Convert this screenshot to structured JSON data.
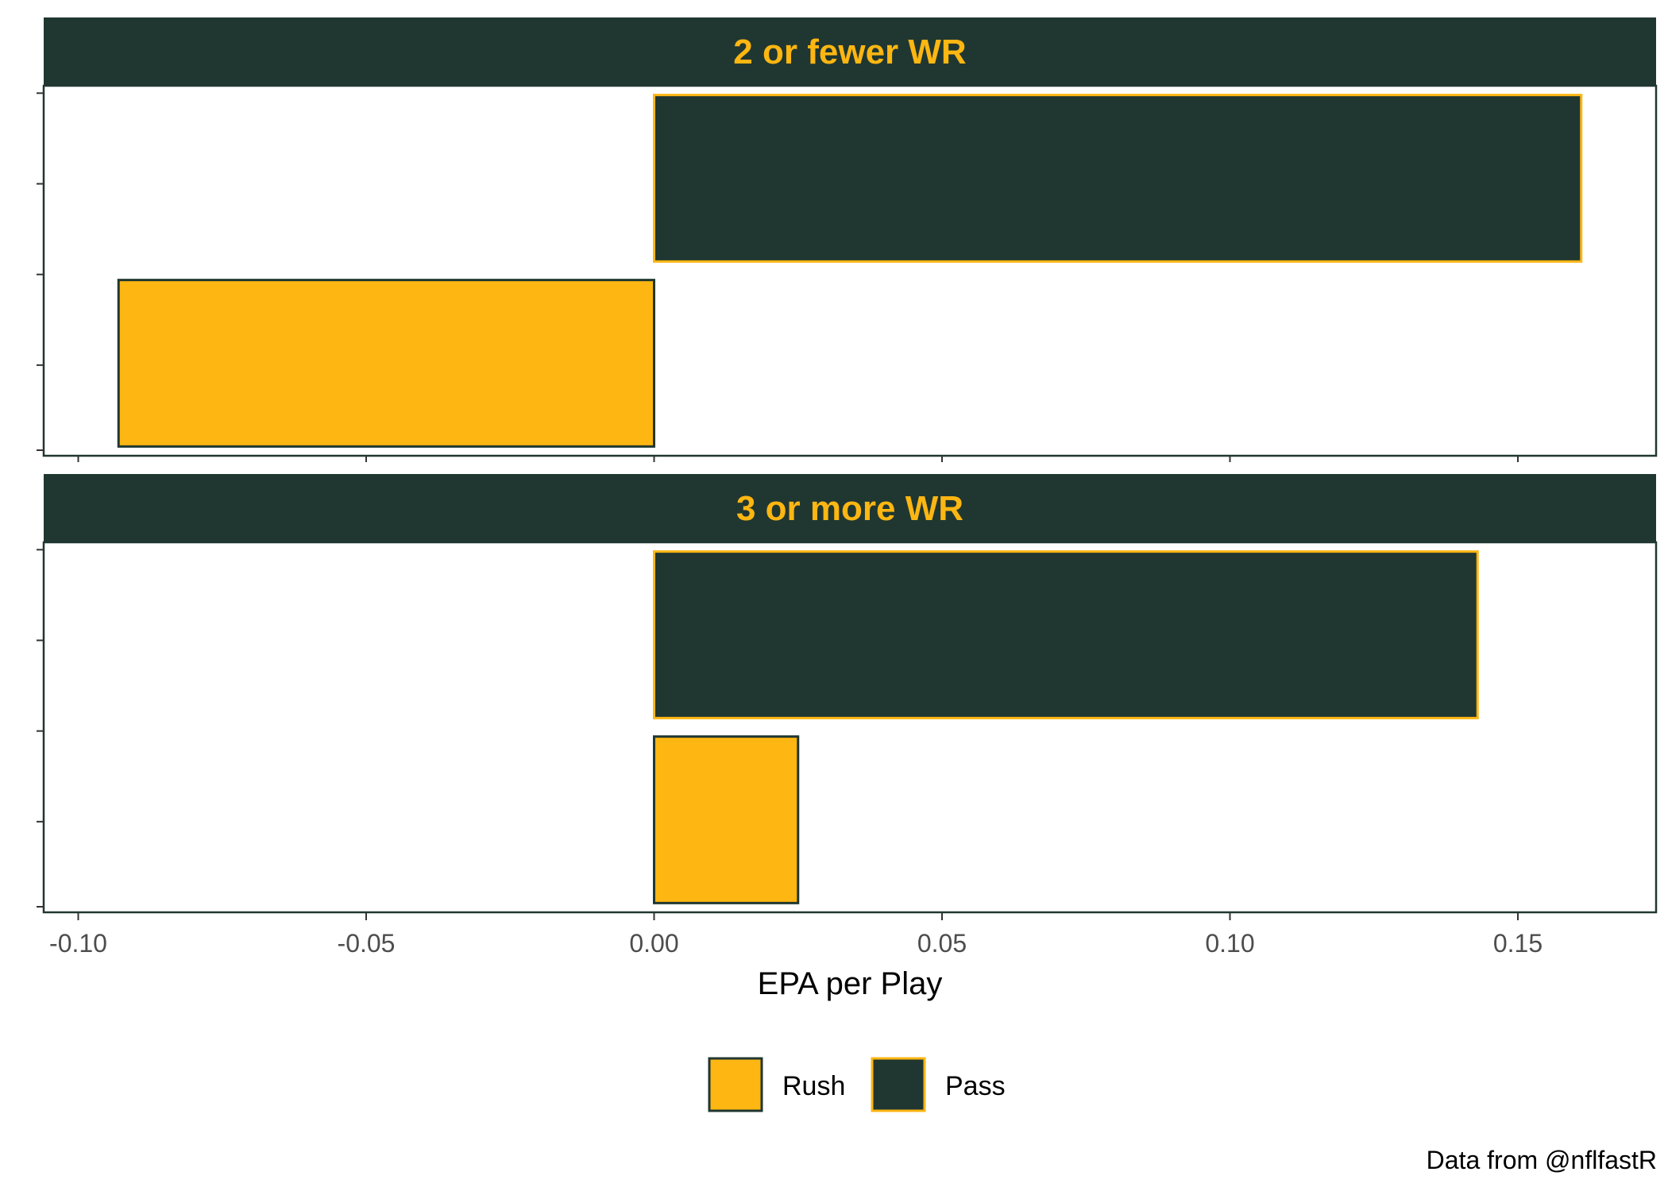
{
  "chart_data": {
    "type": "bar",
    "orientation": "horizontal",
    "facets": [
      {
        "label": "2 or fewer WR",
        "bars": [
          {
            "series": "Pass",
            "value": 0.161
          },
          {
            "series": "Rush",
            "value": -0.093
          }
        ]
      },
      {
        "label": "3 or more WR",
        "bars": [
          {
            "series": "Pass",
            "value": 0.143
          },
          {
            "series": "Rush",
            "value": 0.025
          }
        ]
      }
    ],
    "series": [
      {
        "name": "Rush",
        "fill": "#FDB612",
        "stroke": "#203731"
      },
      {
        "name": "Pass",
        "fill": "#203731",
        "stroke": "#FDB612"
      }
    ],
    "xlabel": "EPA per Play",
    "xlim": [
      -0.106,
      0.174
    ],
    "xticks": [
      -0.1,
      -0.05,
      0.0,
      0.05,
      0.1,
      0.15
    ],
    "xtick_labels": [
      "-0.10",
      "-0.05",
      "0.00",
      "0.05",
      "0.10",
      "0.15"
    ],
    "grid": false,
    "legend_position": "bottom",
    "caption": "Data from @nflfastR",
    "colors": {
      "strip_bg": "#203731",
      "strip_text": "#FDB612",
      "panel_border": "#203731"
    }
  }
}
